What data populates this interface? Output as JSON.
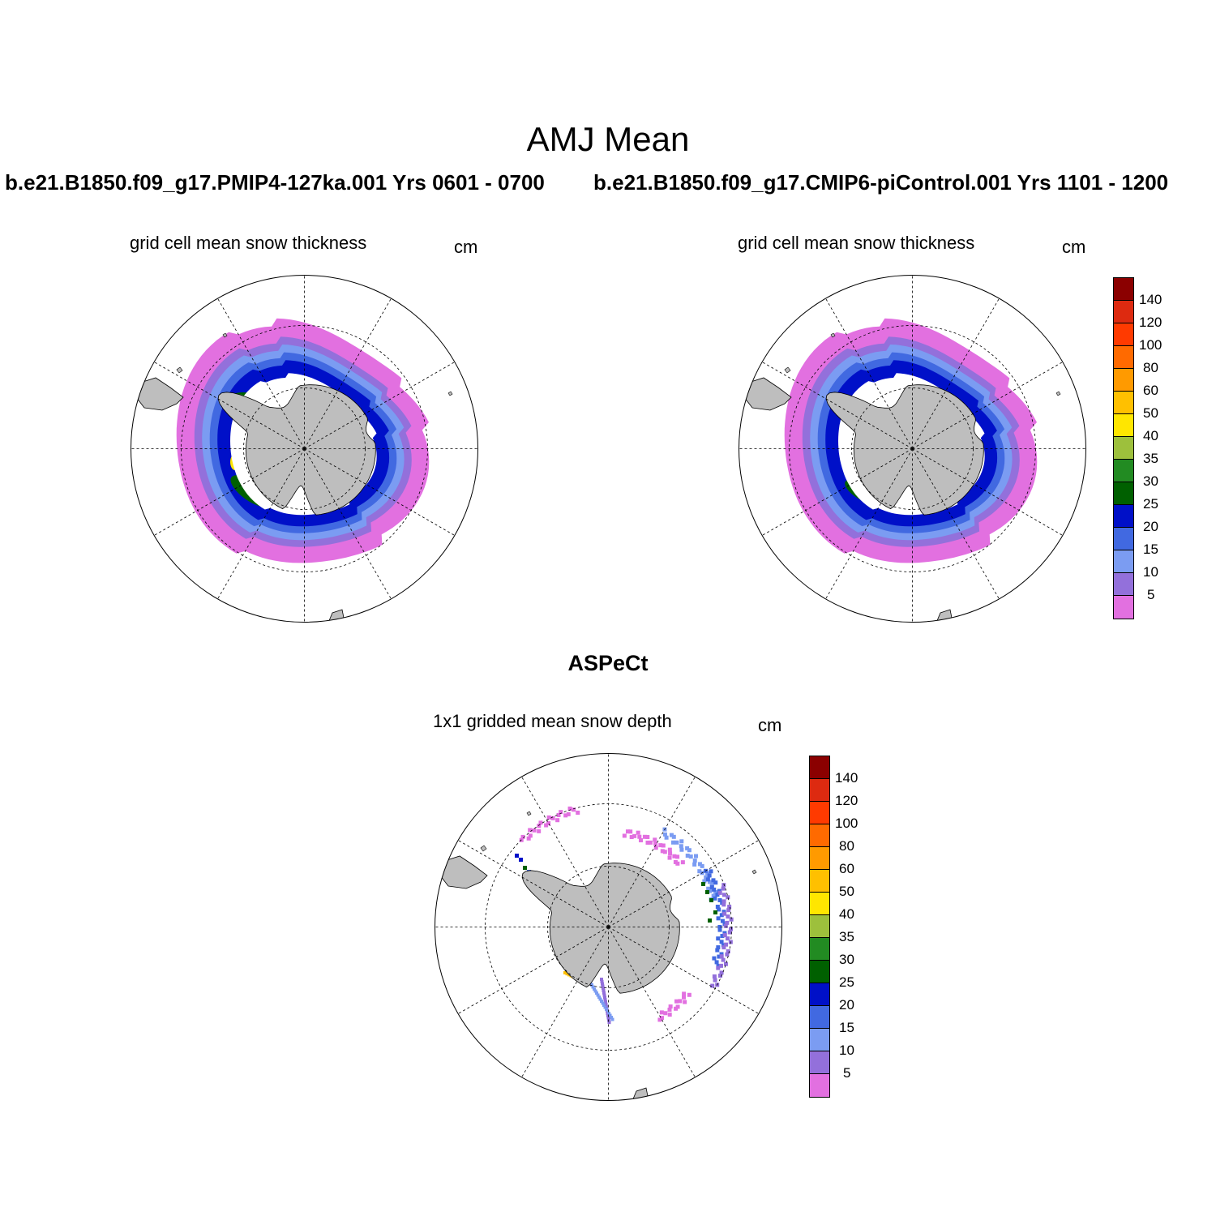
{
  "title": "AMJ Mean",
  "panels": [
    {
      "case_title": "b.e21.B1850.f09_g17.PMIP4-127ka.001  Yrs 0601 - 0700",
      "subtitle": "grid cell mean snow thickness",
      "units": "cm"
    },
    {
      "case_title": "b.e21.B1850.f09_g17.CMIP6-piControl.001  Yrs 1101 - 1200",
      "subtitle": "grid cell mean snow thickness",
      "units": "cm"
    },
    {
      "case_title": "ASPeCt",
      "subtitle": "1x1 gridded mean snow depth",
      "units": "cm"
    }
  ],
  "colorbar": {
    "labels": [
      "140",
      "120",
      "100",
      "80",
      "60",
      "50",
      "40",
      "35",
      "30",
      "25",
      "20",
      "15",
      "10",
      "5"
    ],
    "colors": [
      "#8b0000",
      "#dd2a10",
      "#ff3a00",
      "#ff6a00",
      "#ff9a00",
      "#ffc000",
      "#ffe600",
      "#9dc03c",
      "#228b22",
      "#006000",
      "#0010c8",
      "#4169e1",
      "#7b9cf2",
      "#9370db",
      "#e270e0"
    ]
  },
  "map_colors": {
    "land": "#bebebe",
    "coastline": "#000000",
    "grid": "#000000"
  }
}
